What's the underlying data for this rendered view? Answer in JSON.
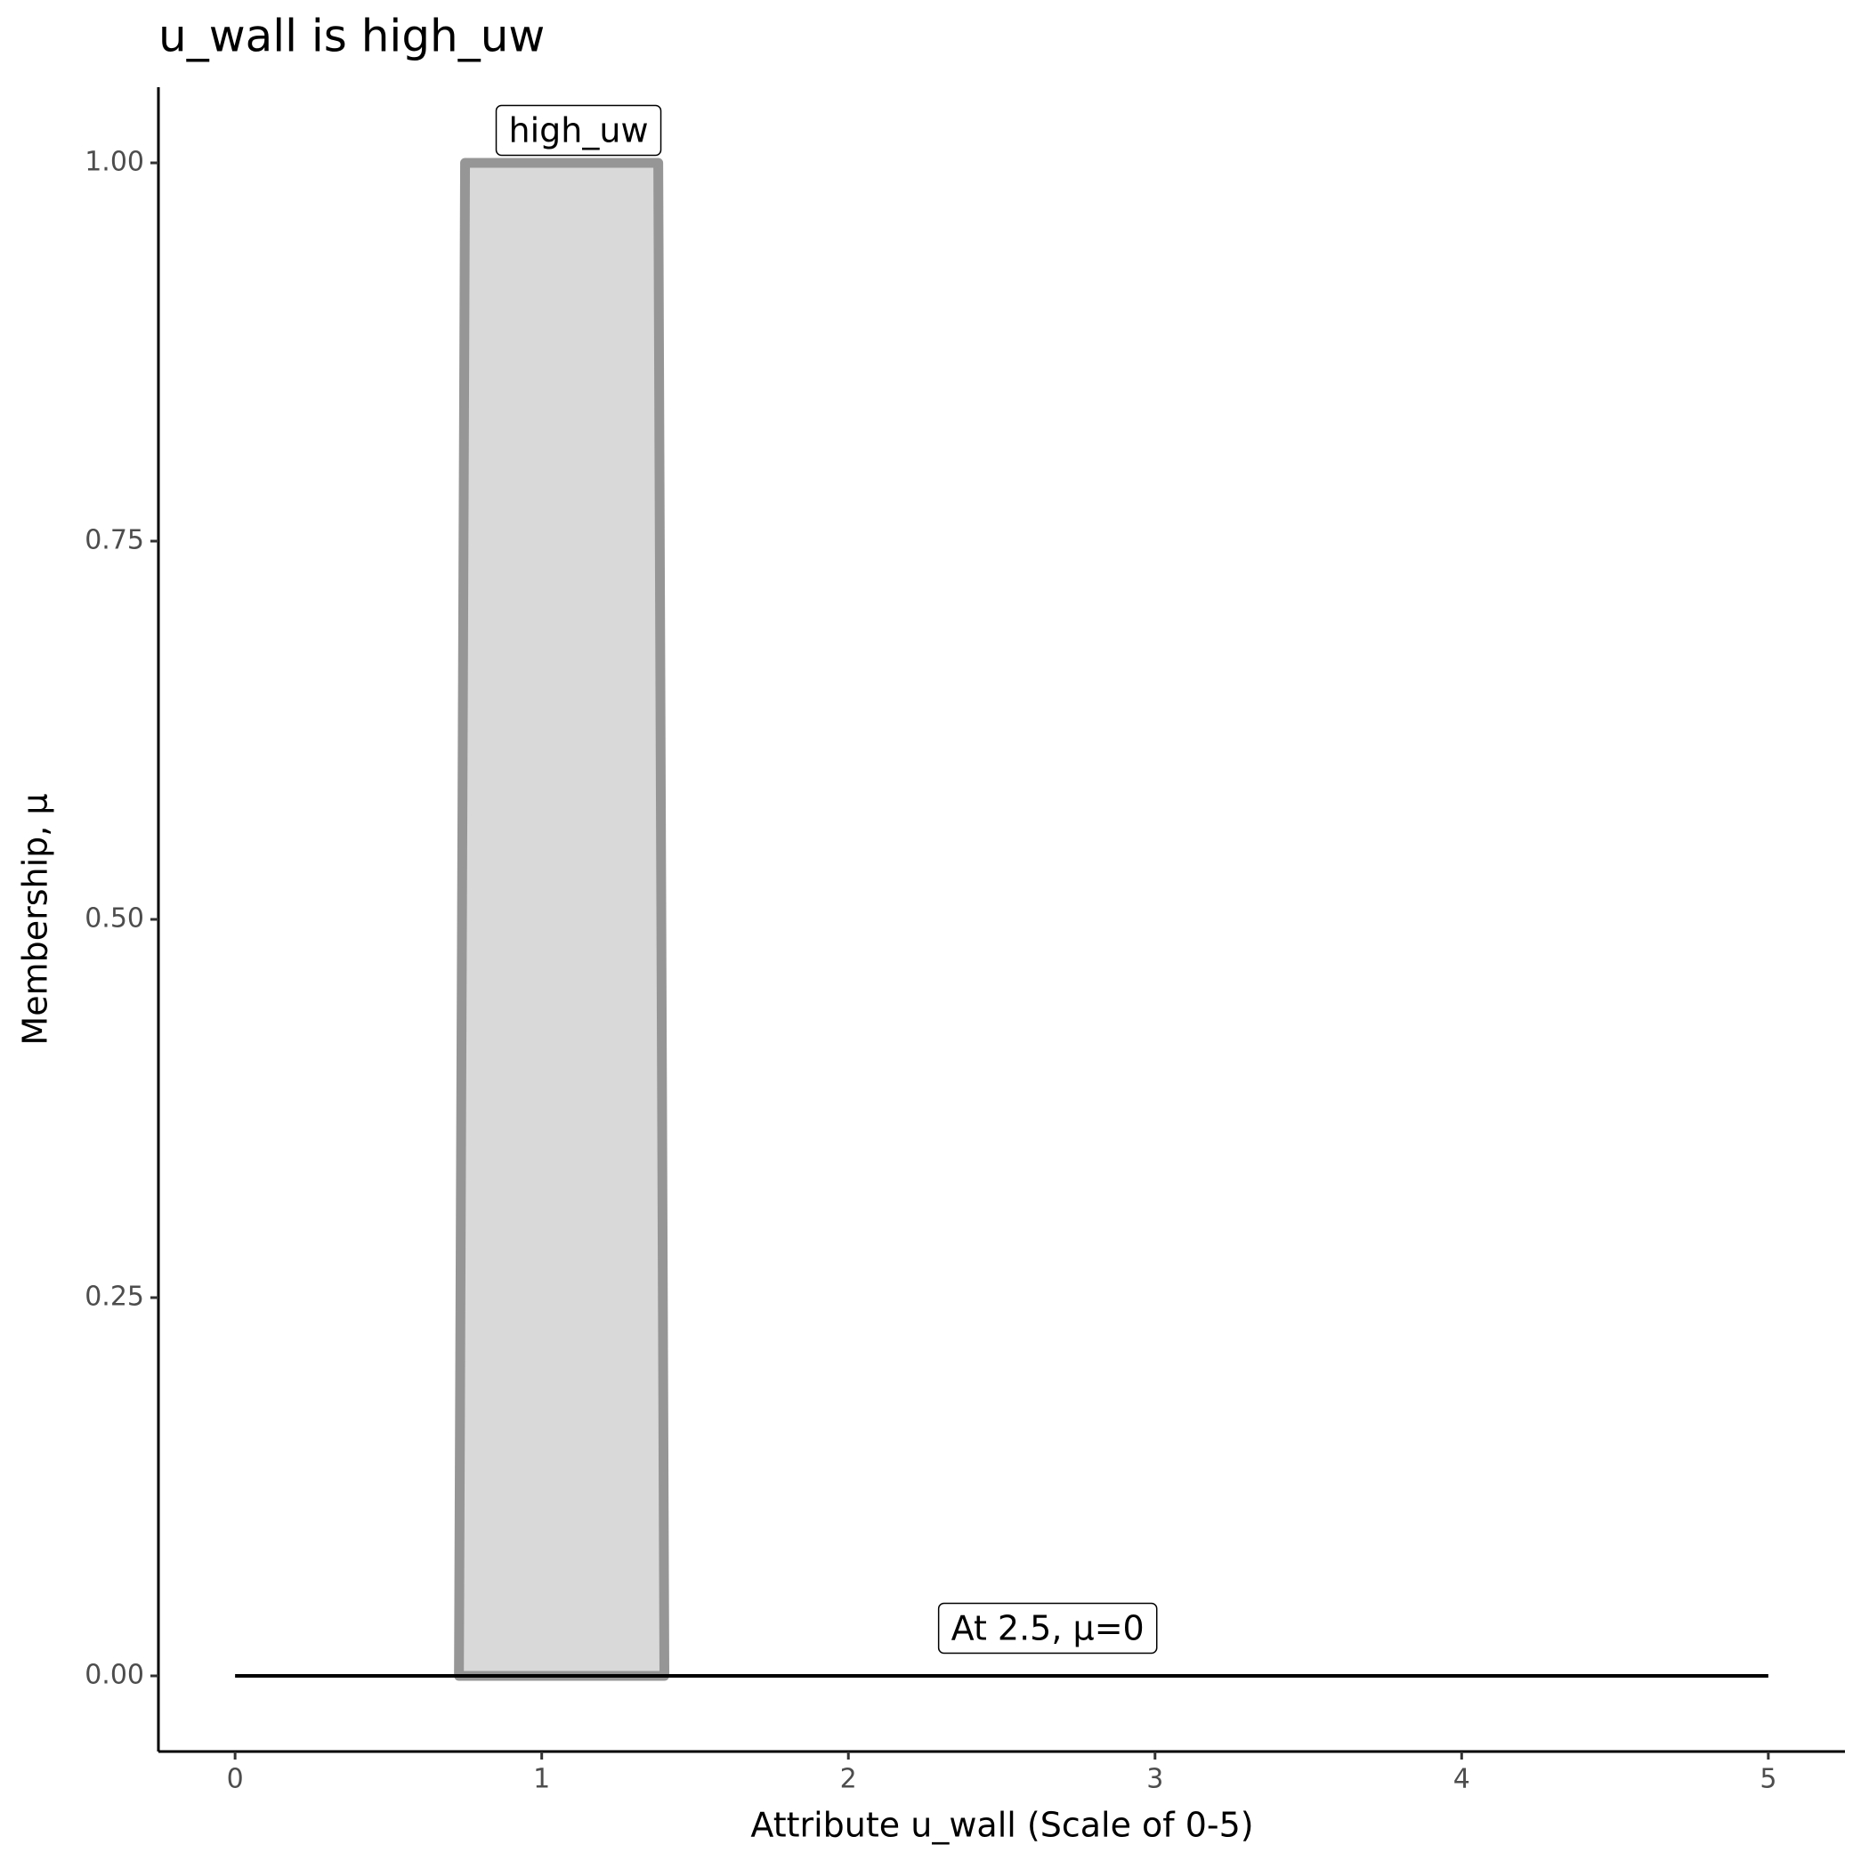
{
  "chart_data": {
    "type": "area",
    "title": "u_wall is high_uw",
    "x_label": "Attribute u_wall (Scale of 0-5)",
    "y_label": "Membership, μ",
    "xlim": [
      -0.25,
      5.25
    ],
    "ylim": [
      -0.05,
      1.05
    ],
    "xticks": [
      0,
      1,
      2,
      3,
      4,
      5
    ],
    "yticks": [
      {
        "value": 0,
        "label": "0.00"
      },
      {
        "value": 0.25,
        "label": "0.25"
      },
      {
        "value": 0.5,
        "label": "0.50"
      },
      {
        "value": 0.75,
        "label": "0.75"
      },
      {
        "value": 1,
        "label": "1.00"
      }
    ],
    "grid": false,
    "series": [
      {
        "type": "area",
        "color": "#969696",
        "fill": "#d9d9d9",
        "x": [
          0.73,
          0.75,
          1.38,
          1.4
        ],
        "values": [
          0,
          1,
          1,
          0
        ]
      },
      {
        "type": "line",
        "color": "#000000",
        "x": [
          0,
          5
        ],
        "values": [
          0,
          0
        ]
      }
    ],
    "annotations": [
      {
        "text": "high_uw",
        "x": 1.12,
        "y": 1.02
      },
      {
        "text": "At 2.5, μ=0",
        "x": 2.65,
        "y": 0.03
      }
    ]
  }
}
